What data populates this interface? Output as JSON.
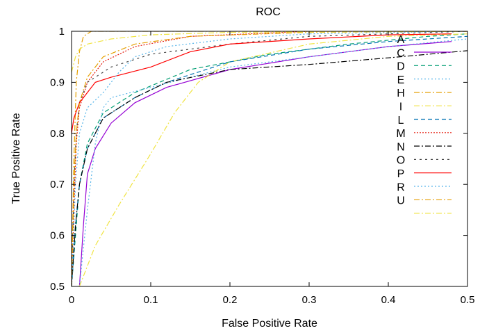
{
  "chart_data": {
    "type": "line",
    "title": "ROC",
    "xlabel": "False Positive Rate",
    "ylabel": "True Positive Rate",
    "xlim": [
      0,
      0.5
    ],
    "ylim": [
      0.5,
      1
    ],
    "xticks": [
      "0",
      "0.1",
      "0.2",
      "0.3",
      "0.4",
      "0.5"
    ],
    "yticks": [
      "0.5",
      "0.6",
      "0.7",
      "0.8",
      "0.9",
      "1"
    ],
    "grid": false,
    "legend": "top-right",
    "series": [
      {
        "name": "A",
        "color": "#9400d3",
        "dash": "",
        "points": [
          [
            0.01,
            0.5
          ],
          [
            0.015,
            0.62
          ],
          [
            0.02,
            0.72
          ],
          [
            0.03,
            0.77
          ],
          [
            0.05,
            0.82
          ],
          [
            0.08,
            0.86
          ],
          [
            0.12,
            0.89
          ],
          [
            0.2,
            0.925
          ],
          [
            0.3,
            0.95
          ],
          [
            0.4,
            0.97
          ],
          [
            0.48,
            0.98
          ]
        ]
      },
      {
        "name": "C",
        "color": "#009e73",
        "dash": "6,4",
        "points": [
          [
            0.0,
            0.5
          ],
          [
            0.005,
            0.6
          ],
          [
            0.01,
            0.7
          ],
          [
            0.02,
            0.78
          ],
          [
            0.04,
            0.84
          ],
          [
            0.08,
            0.88
          ],
          [
            0.15,
            0.925
          ],
          [
            0.25,
            0.955
          ],
          [
            0.35,
            0.975
          ],
          [
            0.45,
            0.99
          ],
          [
            0.5,
            0.995
          ]
        ]
      },
      {
        "name": "D",
        "color": "#56b4e9",
        "dash": "2,3",
        "points": [
          [
            0.01,
            0.5
          ],
          [
            0.02,
            0.65
          ],
          [
            0.03,
            0.78
          ],
          [
            0.04,
            0.85
          ],
          [
            0.05,
            0.87
          ],
          [
            0.1,
            0.89
          ],
          [
            0.2,
            0.93
          ],
          [
            0.3,
            0.95
          ],
          [
            0.4,
            0.97
          ],
          [
            0.5,
            0.985
          ]
        ]
      },
      {
        "name": "E",
        "color": "#e69f00",
        "dash": "8,3,2,3",
        "points": [
          [
            0.0,
            0.5
          ],
          [
            0.003,
            0.75
          ],
          [
            0.006,
            0.9
          ],
          [
            0.01,
            0.96
          ],
          [
            0.015,
            0.99
          ],
          [
            0.025,
            1.0
          ],
          [
            0.5,
            1.0
          ]
        ]
      },
      {
        "name": "H",
        "color": "#f0e442",
        "dash": "8,3,2,3",
        "points": [
          [
            0.01,
            0.5
          ],
          [
            0.03,
            0.58
          ],
          [
            0.06,
            0.66
          ],
          [
            0.1,
            0.76
          ],
          [
            0.13,
            0.84
          ],
          [
            0.16,
            0.9
          ],
          [
            0.2,
            0.94
          ],
          [
            0.3,
            0.975
          ],
          [
            0.4,
            0.99
          ],
          [
            0.5,
            0.995
          ]
        ]
      },
      {
        "name": "I",
        "color": "#0072b2",
        "dash": "6,4",
        "points": [
          [
            0.0,
            0.5
          ],
          [
            0.005,
            0.62
          ],
          [
            0.01,
            0.7
          ],
          [
            0.02,
            0.77
          ],
          [
            0.04,
            0.83
          ],
          [
            0.08,
            0.87
          ],
          [
            0.12,
            0.9
          ],
          [
            0.2,
            0.94
          ],
          [
            0.3,
            0.965
          ],
          [
            0.4,
            0.98
          ],
          [
            0.5,
            0.99
          ]
        ]
      },
      {
        "name": "L",
        "color": "#e51e10",
        "dash": "2,2",
        "points": [
          [
            0.0,
            0.5
          ],
          [
            0.003,
            0.65
          ],
          [
            0.006,
            0.78
          ],
          [
            0.01,
            0.85
          ],
          [
            0.02,
            0.9
          ],
          [
            0.04,
            0.94
          ],
          [
            0.08,
            0.97
          ],
          [
            0.15,
            0.99
          ],
          [
            0.3,
            1.0
          ],
          [
            0.5,
            1.0
          ]
        ]
      },
      {
        "name": "M",
        "color": "#000000",
        "dash": "8,3,2,3",
        "points": [
          [
            0.0,
            0.5
          ],
          [
            0.005,
            0.62
          ],
          [
            0.01,
            0.7
          ],
          [
            0.02,
            0.77
          ],
          [
            0.04,
            0.83
          ],
          [
            0.08,
            0.87
          ],
          [
            0.12,
            0.9
          ],
          [
            0.2,
            0.925
          ],
          [
            0.3,
            0.935
          ],
          [
            0.4,
            0.948
          ],
          [
            0.5,
            0.962
          ]
        ]
      },
      {
        "name": "N",
        "color": "#444444",
        "dash": "3,5",
        "points": [
          [
            0.0,
            0.5
          ],
          [
            0.003,
            0.7
          ],
          [
            0.006,
            0.8
          ],
          [
            0.01,
            0.86
          ],
          [
            0.02,
            0.9
          ],
          [
            0.05,
            0.93
          ],
          [
            0.1,
            0.955
          ],
          [
            0.2,
            0.975
          ],
          [
            0.3,
            0.99
          ],
          [
            0.4,
            0.995
          ],
          [
            0.5,
            1.0
          ]
        ]
      },
      {
        "name": "O",
        "color": "#ff0000",
        "dash": "",
        "points": [
          [
            0.0,
            0.8
          ],
          [
            0.003,
            0.83
          ],
          [
            0.01,
            0.86
          ],
          [
            0.02,
            0.88
          ],
          [
            0.03,
            0.9
          ],
          [
            0.05,
            0.91
          ],
          [
            0.1,
            0.93
          ],
          [
            0.15,
            0.96
          ],
          [
            0.2,
            0.975
          ],
          [
            0.3,
            0.985
          ],
          [
            0.4,
            0.993
          ],
          [
            0.48,
            0.995
          ]
        ]
      },
      {
        "name": "P",
        "color": "#56b4e9",
        "dash": "2,3",
        "points": [
          [
            0.0,
            0.5
          ],
          [
            0.005,
            0.7
          ],
          [
            0.01,
            0.8
          ],
          [
            0.02,
            0.85
          ],
          [
            0.04,
            0.88
          ],
          [
            0.06,
            0.92
          ],
          [
            0.08,
            0.95
          ],
          [
            0.12,
            0.97
          ],
          [
            0.2,
            0.985
          ],
          [
            0.3,
            0.995
          ],
          [
            0.5,
            1.0
          ]
        ]
      },
      {
        "name": "R",
        "color": "#e69f00",
        "dash": "8,3,2,3",
        "points": [
          [
            0.0,
            0.5
          ],
          [
            0.003,
            0.7
          ],
          [
            0.006,
            0.8
          ],
          [
            0.01,
            0.86
          ],
          [
            0.02,
            0.91
          ],
          [
            0.04,
            0.95
          ],
          [
            0.08,
            0.975
          ],
          [
            0.15,
            0.99
          ],
          [
            0.3,
            0.998
          ],
          [
            0.5,
            1.0
          ]
        ]
      },
      {
        "name": "U",
        "color": "#f0e442",
        "dash": "8,3,2,3",
        "points": [
          [
            0.0,
            0.92
          ],
          [
            0.005,
            0.95
          ],
          [
            0.01,
            0.965
          ],
          [
            0.02,
            0.975
          ],
          [
            0.05,
            0.985
          ],
          [
            0.1,
            0.993
          ],
          [
            0.2,
            0.998
          ],
          [
            0.5,
            1.0
          ]
        ]
      }
    ]
  }
}
